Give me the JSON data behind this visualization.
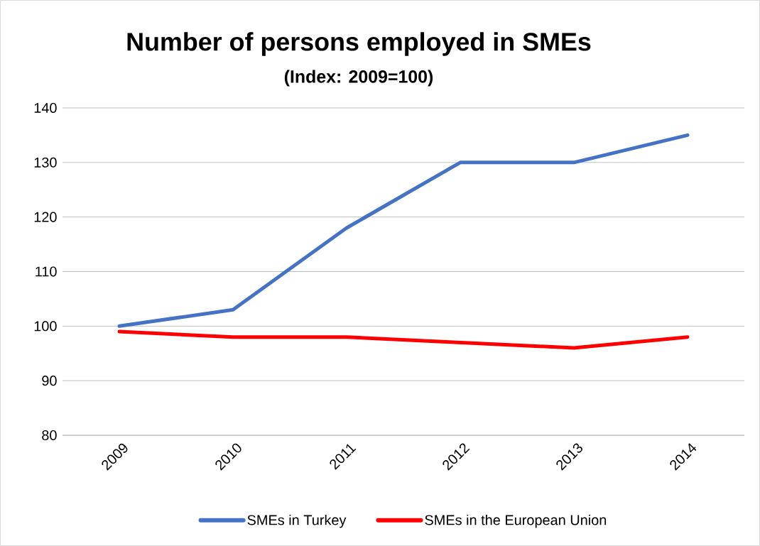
{
  "chart_data": {
    "type": "line",
    "title": "Number of persons employed in SMEs",
    "subtitle": "(Index: 2009=100)",
    "categories": [
      "2009",
      "2010",
      "2011",
      "2012",
      "2013",
      "2014"
    ],
    "series": [
      {
        "name": "SMEs in Turkey",
        "color": "#4472c4",
        "values": [
          100,
          103,
          118,
          130,
          130,
          135
        ]
      },
      {
        "name": "SMEs in the European Union",
        "color": "#ff0000",
        "values": [
          99,
          98,
          98,
          97,
          96,
          98
        ]
      }
    ],
    "ylim": [
      80,
      140
    ],
    "yticks": [
      80,
      90,
      100,
      110,
      120,
      130,
      140
    ],
    "grid": "y",
    "legend": "bottom",
    "marker": "none",
    "line_style": "solid"
  }
}
